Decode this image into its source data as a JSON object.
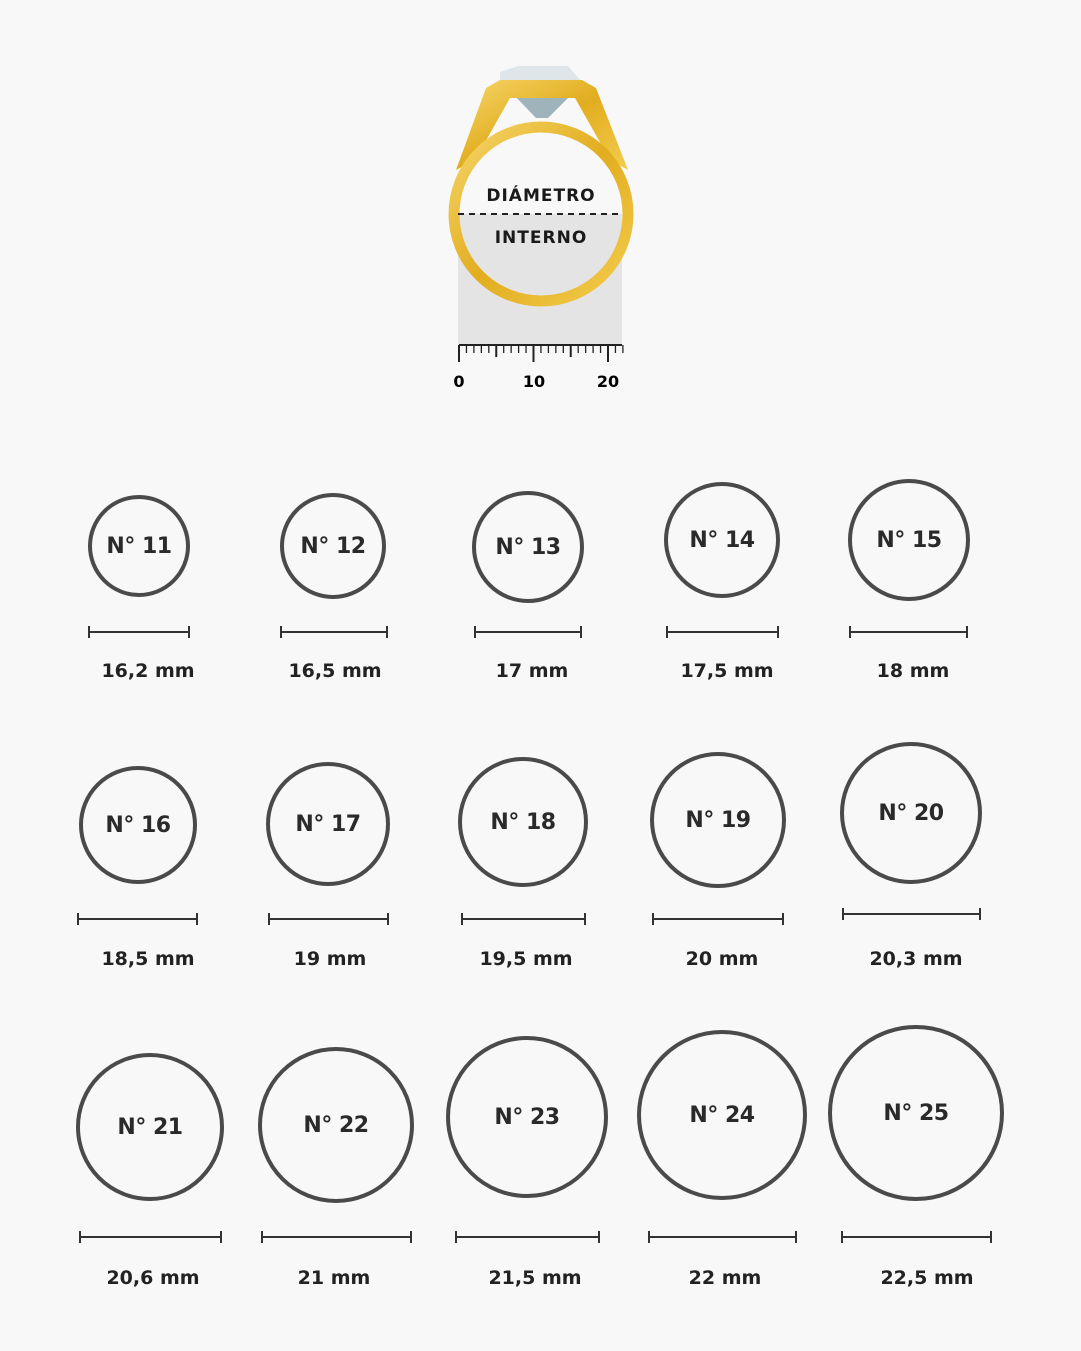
{
  "illustration": {
    "label_top": "DIÁMETRO",
    "label_bottom": "INTERNO",
    "ruler_ticks": [
      "0",
      "10",
      "20"
    ],
    "colors": {
      "gold": "#e8b92c",
      "band_fill": "#e4e4e4",
      "ring_outline": "#4a4a4a"
    }
  },
  "sizes": [
    {
      "label": "N° 11",
      "diameter": "16,2 mm"
    },
    {
      "label": "N° 12",
      "diameter": "16,5 mm"
    },
    {
      "label": "N° 13",
      "diameter": "17 mm"
    },
    {
      "label": "N° 14",
      "diameter": "17,5 mm"
    },
    {
      "label": "N° 15",
      "diameter": "18 mm"
    },
    {
      "label": "N° 16",
      "diameter": "18,5 mm"
    },
    {
      "label": "N° 17",
      "diameter": "19 mm"
    },
    {
      "label": "N° 18",
      "diameter": "19,5 mm"
    },
    {
      "label": "N° 19",
      "diameter": "20 mm"
    },
    {
      "label": "N° 20",
      "diameter": "20,3 mm"
    },
    {
      "label": "N° 21",
      "diameter": "20,6 mm"
    },
    {
      "label": "N° 22",
      "diameter": "21 mm"
    },
    {
      "label": "N° 23",
      "diameter": "21,5 mm"
    },
    {
      "label": "N° 24",
      "diameter": "22 mm"
    },
    {
      "label": "N° 25",
      "diameter": "22,5 mm"
    }
  ]
}
